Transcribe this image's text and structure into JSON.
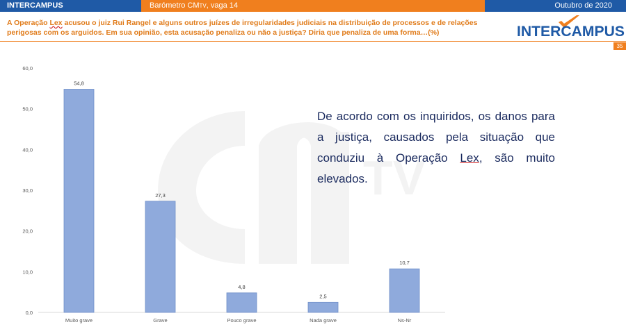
{
  "header": {
    "left": "INTERCAMPUS",
    "center_main": "Barómetro CM",
    "center_small": "TV",
    "center_rest": ", vaga 14",
    "right": "Outubro de 2020"
  },
  "question": {
    "part1": "A Operação ",
    "lex": "Lex",
    "part2": " acusou o juiz Rui Rangel e alguns outros juízes de irregularidades judiciais na distribuição de processos e de relações perigosas com os arguidos. Em sua opinião, esta acusação penaliza ou não a justiça? Diria que penaliza de uma forma…(%)"
  },
  "logo": {
    "text": "INTERCAMPUS"
  },
  "page_number": "35",
  "note": {
    "part1": "De acordo com os inquiridos, os danos para a justiça, causados pela situação que conduziu à Operação ",
    "lex": "Lex",
    "part2": ", são muito elevados."
  },
  "chart_data": {
    "type": "bar",
    "categories": [
      "Muito grave",
      "Grave",
      "Pouco grave",
      "Nada grave",
      "Ns-Nr"
    ],
    "values": [
      54.8,
      27.3,
      4.8,
      2.5,
      10.7
    ],
    "value_labels": [
      "54,8",
      "27,3",
      "4,8",
      "2,5",
      "10,7"
    ],
    "yticks": [
      "0,0",
      "10,0",
      "20,0",
      "30,0",
      "40,0",
      "50,0",
      "60,0"
    ],
    "ylim": [
      0,
      60
    ],
    "title": "",
    "xlabel": "",
    "ylabel": "",
    "grid": false,
    "bar_color": "#8faadc",
    "bar_stroke": "#6f8fc8"
  },
  "colors": {
    "brand_blue": "#1f5aa6",
    "brand_orange": "#f07f1e",
    "note_text": "#1a2a5e"
  }
}
